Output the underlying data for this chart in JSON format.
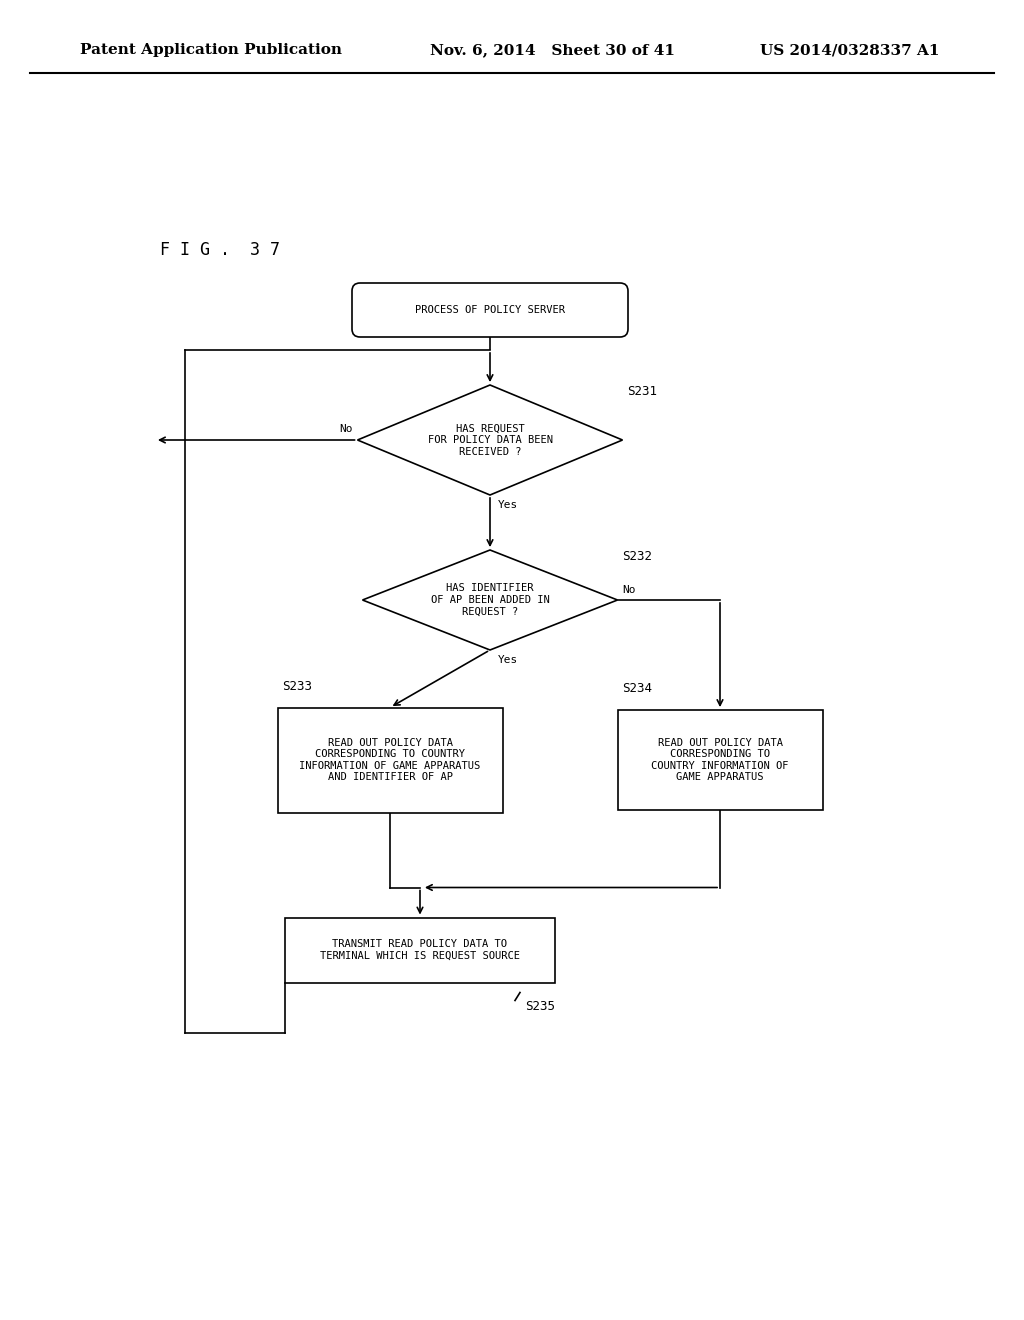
{
  "background_color": "#ffffff",
  "header_left": "Patent Application Publication",
  "header_mid": "Nov. 6, 2014   Sheet 30 of 41",
  "header_right": "US 2014/0328337 A1",
  "fig_label": "F I G .  3 7",
  "font_size_node": 7.5,
  "font_size_header": 11,
  "font_size_label": 9,
  "font_size_fig": 12
}
